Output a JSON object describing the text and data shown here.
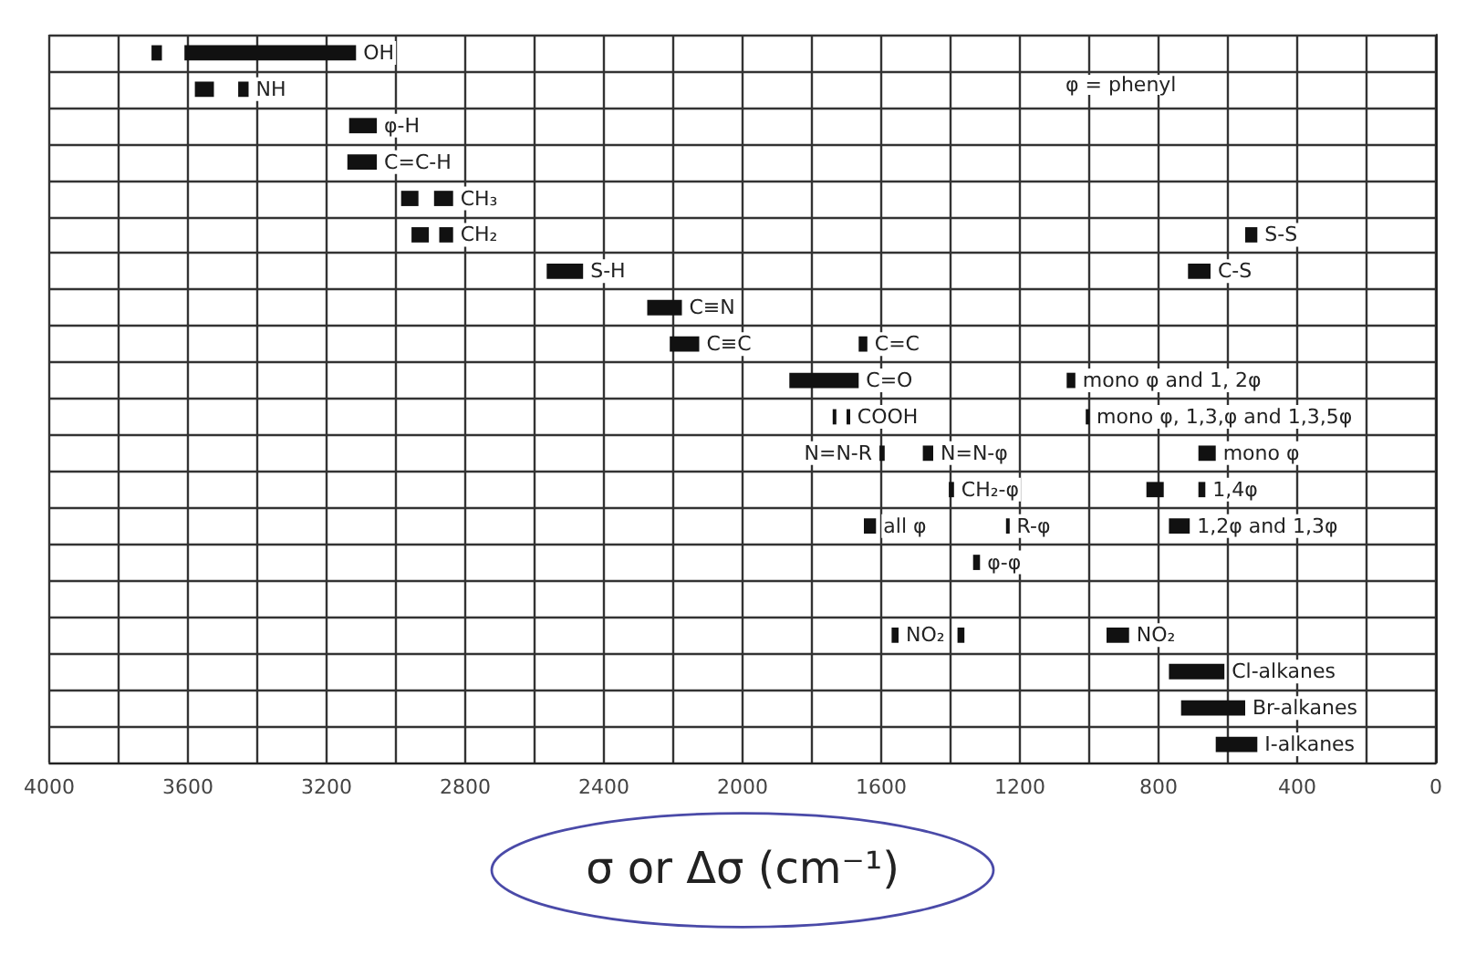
{
  "chart_data": {
    "type": "bar",
    "orientation": "horizontal",
    "xlabel": "σ or Δσ (cm⁻¹)",
    "annotations": [
      "φ = phenyl"
    ],
    "categories": [
      null,
      null,
      null,
      null,
      null,
      null,
      null,
      null,
      null,
      null,
      null,
      null,
      null,
      null,
      null,
      null,
      null,
      null,
      null,
      null
    ],
    "xlim": [
      4000,
      0
    ],
    "xticks": [
      4000,
      {
        "value": 3800,
        "label": null
      },
      3600,
      {
        "value": 3400,
        "label": null
      },
      3200,
      {
        "value": 3000,
        "label": null
      },
      2800,
      {
        "value": 2600,
        "label": null
      },
      2400,
      {
        "value": 2200,
        "label": null
      },
      2000,
      {
        "value": 1800,
        "label": null
      },
      1600,
      {
        "value": 1400,
        "label": null
      },
      1200,
      {
        "value": 1000,
        "label": null
      },
      800,
      {
        "value": 600,
        "label": null
      },
      400,
      {
        "value": 200,
        "label": null
      },
      0
    ],
    "grid": true,
    "legend": false,
    "series": [
      {
        "color": "#111111",
        "base": [
          3675,
          3525,
          null,
          null,
          2935,
          2905,
          null,
          null,
          null,
          null,
          1730,
          null,
          785,
          null,
          null,
          null,
          1360,
          null,
          null,
          null
        ],
        "values": [
          30,
          55,
          null,
          null,
          50,
          50,
          null,
          null,
          null,
          null,
          10,
          null,
          50,
          null,
          null,
          null,
          20,
          null,
          null,
          null
        ]
      },
      {
        "name": "OH",
        "color": "#111111",
        "base": [
          3115,
          null,
          null,
          null,
          null,
          null,
          null,
          null,
          null,
          null,
          null,
          null,
          null,
          null,
          null,
          null,
          null,
          null,
          null,
          null
        ],
        "values": [
          495,
          null,
          null,
          null,
          null,
          null,
          null,
          null,
          null,
          null,
          null,
          null,
          null,
          null,
          null,
          null,
          null,
          null,
          null,
          null
        ]
      },
      {
        "name": "NH",
        "color": "#111111",
        "base": [
          null,
          3425,
          null,
          null,
          null,
          null,
          null,
          null,
          null,
          null,
          null,
          null,
          null,
          null,
          null,
          null,
          null,
          null,
          null,
          null
        ],
        "values": [
          null,
          30,
          null,
          null,
          null,
          null,
          null,
          null,
          null,
          null,
          null,
          null,
          null,
          null,
          null,
          null,
          null,
          null,
          null,
          null
        ]
      },
      {
        "name": "φ-H",
        "color": "#111111",
        "base": [
          null,
          null,
          3055,
          null,
          null,
          null,
          null,
          null,
          null,
          null,
          null,
          null,
          null,
          null,
          null,
          null,
          null,
          null,
          null,
          null
        ],
        "values": [
          null,
          null,
          80,
          null,
          null,
          null,
          null,
          null,
          null,
          null,
          null,
          null,
          null,
          null,
          null,
          null,
          null,
          null,
          null,
          null
        ]
      },
      {
        "name": "C=C-H",
        "color": "#111111",
        "base": [
          null,
          null,
          null,
          3055,
          null,
          null,
          null,
          null,
          null,
          null,
          null,
          null,
          null,
          null,
          null,
          null,
          null,
          null,
          null,
          null
        ],
        "values": [
          null,
          null,
          null,
          85,
          null,
          null,
          null,
          null,
          null,
          null,
          null,
          null,
          null,
          null,
          null,
          null,
          null,
          null,
          null,
          null
        ]
      },
      {
        "name": "CH₃",
        "color": "#111111",
        "base": [
          null,
          null,
          null,
          null,
          2835,
          null,
          null,
          null,
          null,
          null,
          null,
          null,
          null,
          null,
          null,
          null,
          null,
          null,
          null,
          null
        ],
        "values": [
          null,
          null,
          null,
          null,
          55,
          null,
          null,
          null,
          null,
          null,
          null,
          null,
          null,
          null,
          null,
          null,
          null,
          null,
          null,
          null
        ]
      },
      {
        "name": "CH₂",
        "color": "#111111",
        "base": [
          null,
          null,
          null,
          null,
          null,
          2835,
          null,
          null,
          null,
          null,
          null,
          null,
          null,
          null,
          null,
          null,
          null,
          null,
          null,
          null
        ],
        "values": [
          null,
          null,
          null,
          null,
          null,
          40,
          null,
          null,
          null,
          null,
          null,
          null,
          null,
          null,
          null,
          null,
          null,
          null,
          null,
          null
        ]
      },
      {
        "name": "S-S",
        "color": "#111111",
        "base": [
          null,
          null,
          null,
          null,
          null,
          515,
          null,
          null,
          null,
          null,
          null,
          null,
          null,
          null,
          null,
          null,
          null,
          null,
          null,
          null
        ],
        "values": [
          null,
          null,
          null,
          null,
          null,
          35,
          null,
          null,
          null,
          null,
          null,
          null,
          null,
          null,
          null,
          null,
          null,
          null,
          null,
          null
        ]
      },
      {
        "name": "S-H",
        "color": "#111111",
        "base": [
          null,
          null,
          null,
          null,
          null,
          null,
          2460,
          null,
          null,
          null,
          null,
          null,
          null,
          null,
          null,
          null,
          null,
          null,
          null,
          null
        ],
        "values": [
          null,
          null,
          null,
          null,
          null,
          null,
          105,
          null,
          null,
          null,
          null,
          null,
          null,
          null,
          null,
          null,
          null,
          null,
          null,
          null
        ]
      },
      {
        "name": "C-S",
        "color": "#111111",
        "base": [
          null,
          null,
          null,
          null,
          null,
          null,
          650,
          null,
          null,
          null,
          null,
          null,
          null,
          null,
          null,
          null,
          null,
          null,
          null,
          null
        ],
        "values": [
          null,
          null,
          null,
          null,
          null,
          null,
          65,
          null,
          null,
          null,
          null,
          null,
          null,
          null,
          null,
          null,
          null,
          null,
          null,
          null
        ]
      },
      {
        "name": "C≡N",
        "color": "#111111",
        "base": [
          null,
          null,
          null,
          null,
          null,
          null,
          null,
          2175,
          null,
          null,
          null,
          null,
          null,
          null,
          null,
          null,
          null,
          null,
          null,
          null
        ],
        "values": [
          null,
          null,
          null,
          null,
          null,
          null,
          null,
          100,
          null,
          null,
          null,
          null,
          null,
          null,
          null,
          null,
          null,
          null,
          null,
          null
        ]
      },
      {
        "name": "C≡C",
        "color": "#111111",
        "base": [
          null,
          null,
          null,
          null,
          null,
          null,
          null,
          null,
          2125,
          null,
          null,
          null,
          null,
          null,
          null,
          null,
          null,
          null,
          null,
          null
        ],
        "values": [
          null,
          null,
          null,
          null,
          null,
          null,
          null,
          null,
          85,
          null,
          null,
          null,
          null,
          null,
          null,
          null,
          null,
          null,
          null,
          null
        ]
      },
      {
        "name": "C=C",
        "color": "#111111",
        "base": [
          null,
          null,
          null,
          null,
          null,
          null,
          null,
          null,
          1640,
          null,
          null,
          null,
          null,
          null,
          null,
          null,
          null,
          null,
          null,
          null
        ],
        "values": [
          null,
          null,
          null,
          null,
          null,
          null,
          null,
          null,
          25,
          null,
          null,
          null,
          null,
          null,
          null,
          null,
          null,
          null,
          null,
          null
        ]
      },
      {
        "name": "C=O",
        "color": "#111111",
        "base": [
          null,
          null,
          null,
          null,
          null,
          null,
          null,
          null,
          null,
          1665,
          null,
          null,
          null,
          null,
          null,
          null,
          null,
          null,
          null,
          null
        ],
        "values": [
          null,
          null,
          null,
          null,
          null,
          null,
          null,
          null,
          null,
          200,
          null,
          null,
          null,
          null,
          null,
          null,
          null,
          null,
          null,
          null
        ]
      },
      {
        "name": "mono φ and 1, 2φ",
        "color": "#111111",
        "base": [
          null,
          null,
          null,
          null,
          null,
          null,
          null,
          null,
          null,
          1040,
          null,
          null,
          null,
          null,
          null,
          null,
          null,
          null,
          null,
          null
        ],
        "values": [
          null,
          null,
          null,
          null,
          null,
          null,
          null,
          null,
          null,
          25,
          null,
          null,
          null,
          null,
          null,
          null,
          null,
          null,
          null,
          null
        ]
      },
      {
        "name": "COOH",
        "color": "#111111",
        "base": [
          null,
          null,
          null,
          null,
          null,
          null,
          null,
          null,
          null,
          null,
          1690,
          null,
          null,
          null,
          null,
          null,
          null,
          null,
          null,
          null
        ],
        "values": [
          null,
          null,
          null,
          null,
          null,
          null,
          null,
          null,
          null,
          null,
          10,
          null,
          null,
          null,
          null,
          null,
          null,
          null,
          null,
          null
        ]
      },
      {
        "name": "mono φ, 1,3,φ and 1,3,5φ",
        "color": "#111111",
        "base": [
          null,
          null,
          null,
          null,
          null,
          null,
          null,
          null,
          null,
          null,
          1000,
          null,
          null,
          null,
          null,
          null,
          null,
          null,
          null,
          null
        ],
        "values": [
          null,
          null,
          null,
          null,
          null,
          null,
          null,
          null,
          null,
          null,
          10,
          null,
          null,
          null,
          null,
          null,
          null,
          null,
          null,
          null
        ]
      },
      {
        "name": "N=N-R",
        "color": "#111111",
        "base": [
          null,
          null,
          null,
          null,
          null,
          null,
          null,
          null,
          null,
          null,
          null,
          1590,
          null,
          null,
          null,
          null,
          null,
          null,
          null,
          null
        ],
        "values": [
          null,
          null,
          null,
          null,
          null,
          null,
          null,
          null,
          null,
          null,
          null,
          15,
          null,
          null,
          null,
          null,
          null,
          null,
          null,
          null
        ]
      },
      {
        "name": "N=N-φ",
        "color": "#111111",
        "base": [
          null,
          null,
          null,
          null,
          null,
          null,
          null,
          null,
          null,
          null,
          null,
          1450,
          null,
          null,
          null,
          null,
          null,
          null,
          null,
          null
        ],
        "values": [
          null,
          null,
          null,
          null,
          null,
          null,
          null,
          null,
          null,
          null,
          null,
          30,
          null,
          null,
          null,
          null,
          null,
          null,
          null,
          null
        ]
      },
      {
        "name": "mono φ",
        "color": "#111111",
        "base": [
          null,
          null,
          null,
          null,
          null,
          null,
          null,
          null,
          null,
          null,
          null,
          635,
          null,
          null,
          null,
          null,
          null,
          null,
          null,
          null
        ],
        "values": [
          null,
          null,
          null,
          null,
          null,
          null,
          null,
          null,
          null,
          null,
          null,
          50,
          null,
          null,
          null,
          null,
          null,
          null,
          null,
          null
        ]
      },
      {
        "name": "CH₂-φ",
        "color": "#111111",
        "base": [
          null,
          null,
          null,
          null,
          null,
          null,
          null,
          null,
          null,
          null,
          null,
          null,
          1390,
          null,
          null,
          null,
          null,
          null,
          null,
          null
        ],
        "values": [
          null,
          null,
          null,
          null,
          null,
          null,
          null,
          null,
          null,
          null,
          null,
          null,
          15,
          null,
          null,
          null,
          null,
          null,
          null,
          null
        ]
      },
      {
        "name": "1,4φ",
        "color": "#111111",
        "base": [
          null,
          null,
          null,
          null,
          null,
          null,
          null,
          null,
          null,
          null,
          null,
          null,
          665,
          null,
          null,
          null,
          null,
          null,
          null,
          null
        ],
        "values": [
          null,
          null,
          null,
          null,
          null,
          null,
          null,
          null,
          null,
          null,
          null,
          null,
          20,
          null,
          null,
          null,
          null,
          null,
          null,
          null
        ]
      },
      {
        "name": "all φ",
        "color": "#111111",
        "base": [
          null,
          null,
          null,
          null,
          null,
          null,
          null,
          null,
          null,
          null,
          null,
          null,
          null,
          1615,
          null,
          null,
          null,
          null,
          null,
          null
        ],
        "values": [
          null,
          null,
          null,
          null,
          null,
          null,
          null,
          null,
          null,
          null,
          null,
          null,
          null,
          35,
          null,
          null,
          null,
          null,
          null,
          null
        ]
      },
      {
        "name": "R-φ",
        "color": "#111111",
        "base": [
          null,
          null,
          null,
          null,
          null,
          null,
          null,
          null,
          null,
          null,
          null,
          null,
          null,
          1230,
          null,
          null,
          null,
          null,
          null,
          null
        ],
        "values": [
          null,
          null,
          null,
          null,
          null,
          null,
          null,
          null,
          null,
          null,
          null,
          null,
          null,
          10,
          null,
          null,
          null,
          null,
          null,
          null
        ]
      },
      {
        "name": "1,2φ and 1,3φ",
        "color": "#111111",
        "base": [
          null,
          null,
          null,
          null,
          null,
          null,
          null,
          null,
          null,
          null,
          null,
          null,
          null,
          710,
          null,
          null,
          null,
          null,
          null,
          null
        ],
        "values": [
          null,
          null,
          null,
          null,
          null,
          null,
          null,
          null,
          null,
          null,
          null,
          null,
          null,
          60,
          null,
          null,
          null,
          null,
          null,
          null
        ]
      },
      {
        "name": "φ-φ",
        "color": "#111111",
        "base": [
          null,
          null,
          null,
          null,
          null,
          null,
          null,
          null,
          null,
          null,
          null,
          null,
          null,
          null,
          1315,
          null,
          null,
          null,
          null,
          null
        ],
        "values": [
          null,
          null,
          null,
          null,
          null,
          null,
          null,
          null,
          null,
          null,
          null,
          null,
          null,
          null,
          20,
          null,
          null,
          null,
          null,
          null
        ]
      },
      {
        "name": "NO₂",
        "color": "#111111",
        "base": [
          null,
          null,
          null,
          null,
          null,
          null,
          null,
          null,
          null,
          null,
          null,
          null,
          null,
          null,
          null,
          null,
          1550,
          null,
          null,
          null
        ],
        "values": [
          null,
          null,
          null,
          null,
          null,
          null,
          null,
          null,
          null,
          null,
          null,
          null,
          null,
          null,
          null,
          null,
          20,
          null,
          null,
          null
        ]
      },
      {
        "name": "NO₂",
        "color": "#111111",
        "base": [
          null,
          null,
          null,
          null,
          null,
          null,
          null,
          null,
          null,
          null,
          null,
          null,
          null,
          null,
          null,
          null,
          885,
          null,
          null,
          null
        ],
        "values": [
          null,
          null,
          null,
          null,
          null,
          null,
          null,
          null,
          null,
          null,
          null,
          null,
          null,
          null,
          null,
          null,
          65,
          null,
          null,
          null
        ]
      },
      {
        "name": "Cl-alkanes",
        "color": "#111111",
        "base": [
          null,
          null,
          null,
          null,
          null,
          null,
          null,
          null,
          null,
          null,
          null,
          null,
          null,
          null,
          null,
          null,
          null,
          610,
          null,
          null
        ],
        "values": [
          null,
          null,
          null,
          null,
          null,
          null,
          null,
          null,
          null,
          null,
          null,
          null,
          null,
          null,
          null,
          null,
          null,
          160,
          null,
          null
        ]
      },
      {
        "name": "Br-alkanes",
        "color": "#111111",
        "base": [
          null,
          null,
          null,
          null,
          null,
          null,
          null,
          null,
          null,
          null,
          null,
          null,
          null,
          null,
          null,
          null,
          null,
          null,
          550,
          null
        ],
        "values": [
          null,
          null,
          null,
          null,
          null,
          null,
          null,
          null,
          null,
          null,
          null,
          null,
          null,
          null,
          null,
          null,
          null,
          null,
          185,
          null
        ]
      },
      {
        "name": "I-alkanes",
        "color": "#111111",
        "base": [
          null,
          null,
          null,
          null,
          null,
          null,
          null,
          null,
          null,
          null,
          null,
          null,
          null,
          null,
          null,
          null,
          null,
          null,
          null,
          515
        ],
        "values": [
          null,
          null,
          null,
          null,
          null,
          null,
          null,
          null,
          null,
          null,
          null,
          null,
          null,
          null,
          null,
          null,
          null,
          null,
          null,
          120
        ]
      }
    ]
  }
}
